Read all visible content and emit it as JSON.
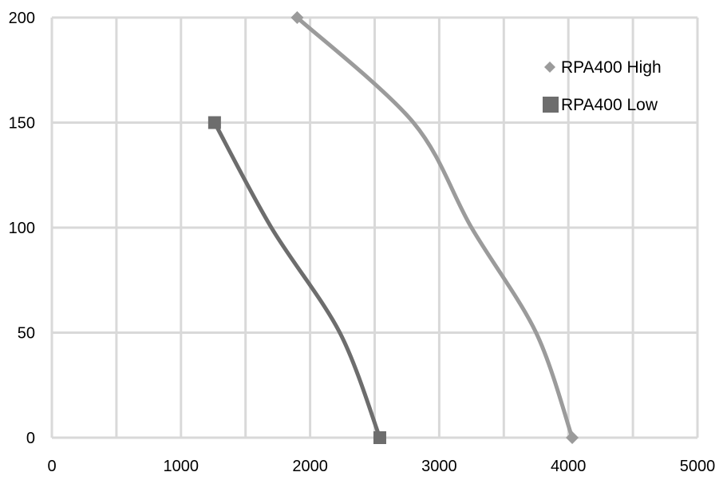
{
  "chart_data": {
    "type": "line",
    "title": "",
    "xlabel": "",
    "ylabel": "",
    "xlim": [
      0,
      5000
    ],
    "ylim": [
      0,
      200
    ],
    "x_ticks": [
      "0",
      "1000",
      "2000",
      "3000",
      "4000",
      "5000"
    ],
    "y_ticks": [
      "0",
      "50",
      "100",
      "150",
      "200"
    ],
    "grid": true,
    "legend_position": "top-right",
    "series": [
      {
        "name": "RPA400 High",
        "color": "#9b9b9b",
        "marker": "diamond",
        "points": [
          [
            1900,
            200
          ],
          [
            2800,
            150
          ],
          [
            3250,
            100
          ],
          [
            3750,
            50
          ],
          [
            4030,
            0
          ]
        ]
      },
      {
        "name": "RPA400 Low",
        "color": "#6d6d6d",
        "marker": "square",
        "points": [
          [
            1260,
            150
          ],
          [
            1700,
            100
          ],
          [
            2230,
            50
          ],
          [
            2540,
            0
          ]
        ]
      }
    ]
  }
}
